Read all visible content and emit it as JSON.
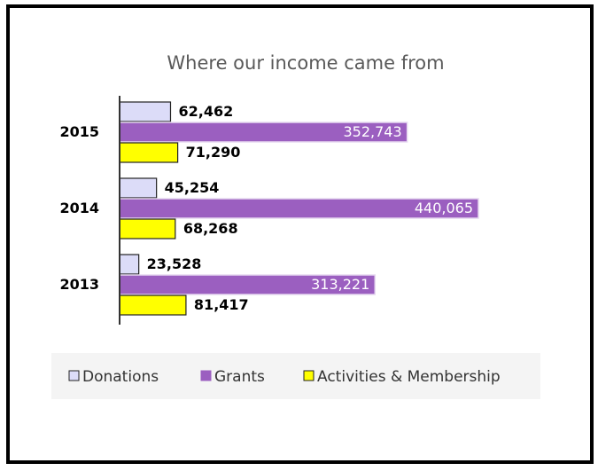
{
  "chart_data": {
    "type": "hbar",
    "title": "Where our income came from",
    "categories": [
      "2015",
      "2014",
      "2013"
    ],
    "series": [
      {
        "name": "Donations",
        "color": "#dcdcf8",
        "values": [
          62462,
          45254,
          23528
        ],
        "value_labels": [
          "62,462",
          "45,254",
          "23,528"
        ]
      },
      {
        "name": "Grants",
        "color": "#9b5fc0",
        "values": [
          352743,
          440065,
          313221
        ],
        "value_labels": [
          "352,743",
          "440,065",
          "313,221"
        ]
      },
      {
        "name": "Activities & Membership",
        "color": "#ffff00",
        "values": [
          71290,
          68268,
          81417
        ],
        "value_labels": [
          "71,290",
          "68,268",
          "81,417"
        ]
      }
    ],
    "legend": "bottom"
  }
}
